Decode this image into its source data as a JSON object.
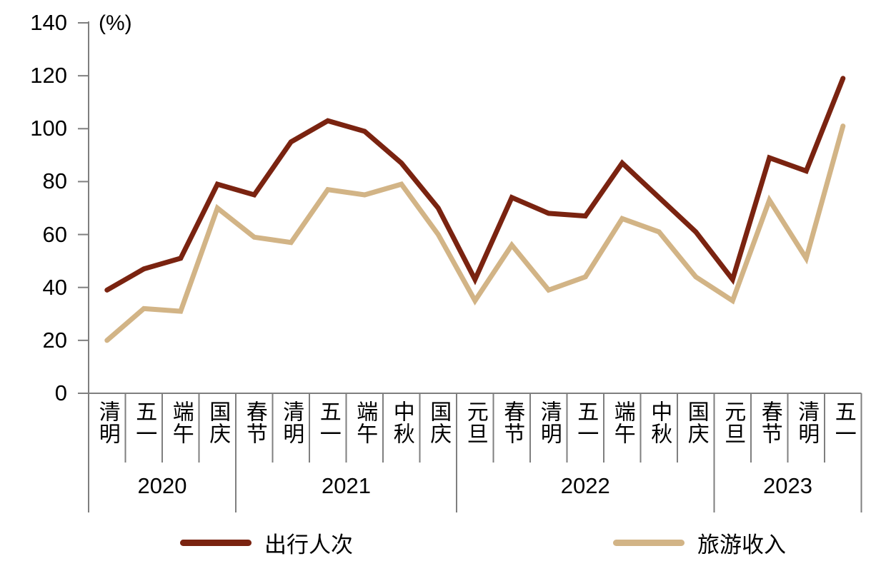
{
  "chart_data": {
    "type": "line",
    "title": "",
    "unit_label": "(%)",
    "ylim": [
      0,
      140
    ],
    "ytick_step": 20,
    "yticks": [
      "0",
      "20",
      "40",
      "60",
      "80",
      "100",
      "120",
      "140"
    ],
    "grid": false,
    "legend_position": "bottom",
    "axis_color": "#7F7F7F",
    "groups": [
      {
        "year": "2020",
        "categories": [
          "清明",
          "五一",
          "端午",
          "国庆"
        ]
      },
      {
        "year": "2021",
        "categories": [
          "春节",
          "清明",
          "五一",
          "端午",
          "中秋",
          "国庆"
        ]
      },
      {
        "year": "2022",
        "categories": [
          "元旦",
          "春节",
          "清明",
          "五一",
          "端午",
          "中秋",
          "国庆"
        ]
      },
      {
        "year": "2023",
        "categories": [
          "元旦",
          "春节",
          "清明",
          "五一"
        ]
      }
    ],
    "series": [
      {
        "name": "出行人次",
        "color": "#7A2310",
        "values": [
          39,
          47,
          51,
          79,
          75,
          95,
          103,
          99,
          87,
          70,
          43,
          74,
          68,
          67,
          87,
          74,
          61,
          43,
          89,
          84,
          119
        ]
      },
      {
        "name": "旅游收入",
        "color": "#D2B486",
        "values": [
          20,
          32,
          31,
          70,
          59,
          57,
          77,
          75,
          79,
          60,
          35,
          56,
          39,
          44,
          66,
          61,
          44,
          35,
          73,
          51,
          101
        ]
      }
    ]
  }
}
